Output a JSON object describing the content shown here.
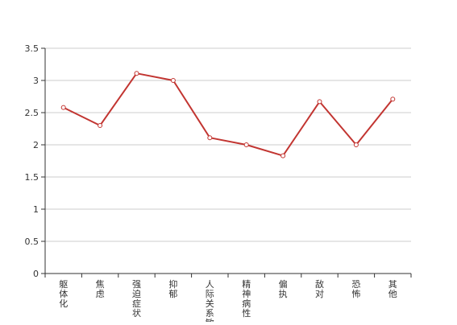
{
  "chart_data": {
    "type": "line",
    "title": "",
    "xlabel": "",
    "ylabel": "",
    "categories": [
      "躯体化",
      "焦虑",
      "强迫症状",
      "抑郁",
      "人际关系敏感",
      "精神病性",
      "偏执",
      "敌对",
      "恐怖",
      "其他"
    ],
    "series": [
      {
        "values": [
          2.58,
          2.3,
          3.11,
          3.0,
          2.11,
          2.0,
          1.83,
          2.67,
          2.0,
          2.71
        ],
        "color": "#c23531"
      }
    ],
    "ylim": [
      0,
      3.5
    ],
    "yticks": [
      "0",
      "0.5",
      "1",
      "1.5",
      "2",
      "2.5",
      "3",
      "3.5"
    ],
    "grid": true,
    "legend": "none"
  }
}
